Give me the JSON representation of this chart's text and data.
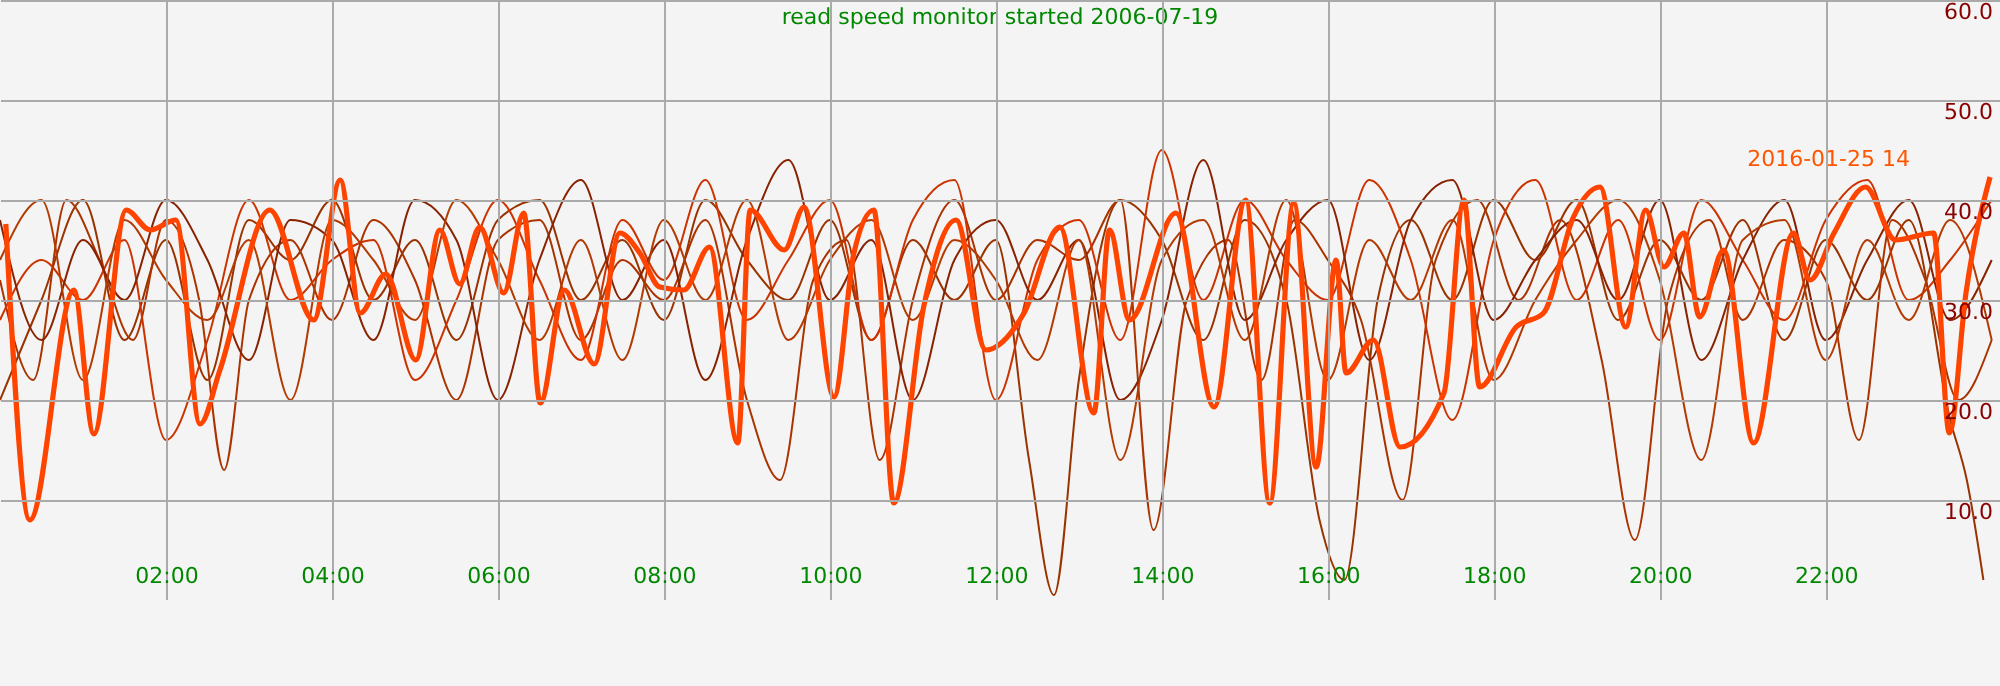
{
  "chart_data": {
    "type": "line",
    "title": "read speed monitor started 2006-07-19",
    "annotations": [
      "2016-01-25 14"
    ],
    "xlim": [
      0,
      24.1
    ],
    "ylim": [
      0,
      60
    ],
    "xticks": [
      {
        "value": 2,
        "label": "02:00"
      },
      {
        "value": 4,
        "label": "04:00"
      },
      {
        "value": 6,
        "label": "06:00"
      },
      {
        "value": 8,
        "label": "08:00"
      },
      {
        "value": 10,
        "label": "10:00"
      },
      {
        "value": 12,
        "label": "12:00"
      },
      {
        "value": 14,
        "label": "14:00"
      },
      {
        "value": 16,
        "label": "16:00"
      },
      {
        "value": 18,
        "label": "18:00"
      },
      {
        "value": 20,
        "label": "20:00"
      },
      {
        "value": 22,
        "label": "22:00"
      }
    ],
    "yticks": [
      {
        "value": 10,
        "label": "10.0"
      },
      {
        "value": 20,
        "label": "20.0"
      },
      {
        "value": 30,
        "label": "30.0"
      },
      {
        "value": 40,
        "label": "40.0"
      },
      {
        "value": 50,
        "label": "50.0"
      },
      {
        "value": 60,
        "label": "60.0"
      }
    ],
    "grid": true,
    "marker": "none",
    "line_style": "solid",
    "series": [
      {
        "color": "#993300",
        "x": [
          0,
          0.5,
          1,
          1.5,
          2,
          2.5,
          3,
          3.5,
          4,
          4.5,
          5,
          5.5,
          6,
          6.5,
          7,
          7.5,
          8,
          8.5,
          9,
          9.5,
          10,
          10.5,
          11,
          11.5,
          12,
          12.4,
          12.7,
          13,
          13.5,
          14,
          14.5,
          15,
          15.5,
          15.9,
          16.2,
          16.6,
          17,
          17.5,
          18,
          18.5,
          19,
          19.5,
          20,
          20.5,
          21,
          21.5,
          22,
          22.5,
          23,
          23.5,
          23.7,
          23.9
        ],
        "values": [
          20,
          30,
          40,
          26,
          36,
          22,
          38,
          34,
          40,
          30,
          36,
          26,
          38,
          40,
          30,
          36,
          28,
          40,
          34,
          30,
          38,
          26,
          36,
          30,
          36,
          14,
          0.5,
          22,
          40,
          36,
          26,
          38,
          30,
          8,
          2,
          30,
          38,
          30,
          40,
          34,
          40,
          28,
          36,
          30,
          38,
          26,
          36,
          30,
          38,
          18,
          12,
          2
        ]
      },
      {
        "color": "#aa3300",
        "x": [
          0,
          0.4,
          0.8,
          1.2,
          1.6,
          2,
          2.4,
          2.7,
          3,
          3.5,
          4,
          4.5,
          5,
          5.5,
          6,
          6.5,
          7,
          7.5,
          8,
          8.5,
          9,
          9.4,
          9.8,
          10.2,
          10.6,
          11,
          11.5,
          12,
          12.5,
          13,
          13.5,
          13.9,
          14.3,
          14.8,
          15.2,
          15.6,
          16,
          16.4,
          16.9,
          17.3,
          17.8,
          18.3,
          18.8,
          19.3,
          19.7,
          20.1,
          20.6,
          21,
          21.5,
          22,
          22.4,
          22.8,
          23.2,
          23.6,
          24
        ],
        "values": [
          32,
          22,
          40,
          34,
          26,
          38,
          30,
          13,
          30,
          36,
          28,
          38,
          32,
          20,
          36,
          38,
          26,
          34,
          30,
          38,
          20,
          12,
          32,
          36,
          14,
          30,
          40,
          30,
          36,
          34,
          40,
          7,
          30,
          36,
          22,
          38,
          34,
          28,
          10,
          34,
          40,
          30,
          38,
          24,
          6,
          30,
          38,
          28,
          36,
          32,
          16,
          38,
          32,
          20,
          26
        ]
      },
      {
        "color": "#cc3300",
        "x": [
          0,
          0.5,
          1,
          1.5,
          2,
          2.5,
          3,
          3.5,
          4,
          4.5,
          5,
          5.5,
          6,
          6.5,
          7,
          7.5,
          8,
          8.5,
          9,
          9.5,
          10,
          10.5,
          11,
          11.5,
          12,
          12.5,
          13,
          13.5,
          14,
          14.5,
          15,
          15.5,
          16,
          16.5,
          17,
          17.5,
          18,
          18.5,
          19,
          19.5,
          20,
          20.5,
          21,
          21.5,
          22,
          22.5,
          23,
          23.5,
          24
        ],
        "values": [
          28,
          34,
          30,
          36,
          16,
          26,
          40,
          30,
          34,
          36,
          22,
          30,
          40,
          32,
          24,
          38,
          32,
          42,
          28,
          34,
          40,
          26,
          38,
          42,
          20,
          34,
          38,
          26,
          45,
          30,
          40,
          34,
          30,
          42,
          34,
          18,
          36,
          42,
          30,
          38,
          26,
          40,
          34,
          28,
          38,
          42,
          30,
          34,
          40
        ]
      },
      {
        "color": "#882200",
        "x": [
          0,
          0.5,
          1,
          1.5,
          2,
          2.5,
          3,
          3.5,
          4,
          4.5,
          5,
          5.5,
          6,
          6.5,
          7,
          7.5,
          8,
          8.5,
          9,
          9.5,
          10,
          10.5,
          11,
          11.5,
          12,
          12.5,
          13,
          13.5,
          14,
          14.5,
          15,
          15.5,
          16,
          16.5,
          17,
          17.5,
          18,
          18.5,
          19,
          19.5,
          20,
          20.5,
          21,
          21.5,
          22,
          22.5,
          23,
          23.5,
          24
        ],
        "values": [
          38,
          26,
          36,
          30,
          40,
          34,
          24,
          38,
          36,
          26,
          40,
          36,
          20,
          34,
          42,
          30,
          36,
          22,
          36,
          44,
          30,
          36,
          20,
          34,
          38,
          30,
          36,
          20,
          28,
          44,
          28,
          36,
          40,
          24,
          38,
          42,
          28,
          34,
          38,
          30,
          40,
          24,
          34,
          40,
          26,
          34,
          40,
          28,
          34
        ]
      },
      {
        "color": "#b33a00",
        "x": [
          0,
          0.5,
          1,
          1.5,
          2,
          2.5,
          3,
          3.5,
          4,
          4.5,
          5,
          5.5,
          6,
          6.5,
          7,
          7.5,
          8,
          8.5,
          9,
          9.5,
          10,
          10.5,
          11,
          11.5,
          12,
          12.5,
          13,
          13.5,
          14,
          14.5,
          15,
          15.5,
          16,
          16.5,
          17,
          17.5,
          18,
          18.5,
          19,
          19.5,
          20,
          20.5,
          21,
          21.5,
          22,
          22.5,
          23,
          23.5,
          24
        ],
        "values": [
          34,
          40,
          22,
          38,
          32,
          28,
          36,
          20,
          38,
          34,
          28,
          40,
          34,
          26,
          36,
          24,
          38,
          30,
          40,
          26,
          34,
          38,
          28,
          36,
          32,
          24,
          36,
          14,
          34,
          38,
          26,
          40,
          22,
          36,
          30,
          38,
          22,
          30,
          36,
          40,
          32,
          14,
          36,
          38,
          24,
          36,
          28,
          38,
          26
        ]
      },
      {
        "color": "#ff4400",
        "x": [
          0.07,
          0.36,
          0.89,
          1.13,
          1.52,
          1.81,
          2.12,
          2.41,
          2.65,
          3.25,
          3.78,
          4.1,
          4.34,
          4.65,
          5.01,
          5.3,
          5.54,
          5.78,
          6.07,
          6.31,
          6.51,
          6.8,
          7.16,
          7.47,
          7.71,
          7.95,
          8.24,
          8.55,
          8.89,
          9.04,
          9.45,
          9.69,
          10.05,
          10.29,
          10.53,
          10.77,
          11.13,
          11.52,
          11.88,
          12.34,
          12.77,
          13.18,
          13.37,
          13.61,
          14.17,
          14.63,
          15.01,
          15.3,
          15.59,
          15.86,
          16.1,
          16.22,
          16.55,
          16.87,
          17.4,
          17.64,
          17.83,
          18.27,
          18.6,
          18.96,
          19.28,
          19.59,
          19.83,
          20.05,
          20.29,
          20.48,
          20.77,
          21.13,
          21.61,
          21.81,
          22.1,
          22.48,
          22.84,
          23.3,
          23.49,
          23.69,
          23.98
        ],
        "values": [
          37.6,
          8,
          31,
          16.6,
          39,
          37,
          38,
          17.6,
          23,
          39,
          28,
          42,
          28.7,
          32.6,
          24,
          37,
          31.6,
          37.3,
          30.7,
          38.7,
          19.7,
          31,
          23.6,
          36.7,
          34.7,
          31.3,
          31,
          35.3,
          15.7,
          39,
          35,
          39.3,
          20.3,
          34.7,
          39,
          9.7,
          29.3,
          38,
          25,
          28.7,
          37.3,
          18.7,
          37,
          28,
          38.7,
          19.3,
          40,
          9.7,
          39.7,
          13.3,
          34,
          22.7,
          26,
          15.3,
          20.7,
          40,
          21.3,
          27.3,
          28.7,
          38.3,
          41.3,
          27.3,
          39,
          33.3,
          36.7,
          28.3,
          35,
          15.7,
          36.7,
          32,
          36.7,
          41.3,
          36,
          36.7,
          16.7,
          30.7,
          42.3
        ]
      }
    ]
  }
}
